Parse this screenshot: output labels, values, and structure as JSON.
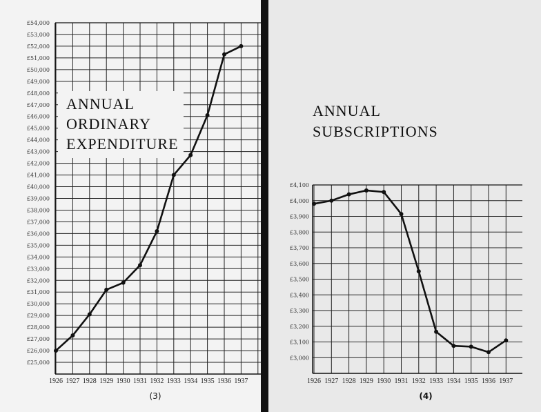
{
  "chart_data": [
    {
      "type": "line",
      "title_lines": [
        "ANNUAL",
        "ORDINARY",
        "EXPENDITURE"
      ],
      "caption": "(3)",
      "categories": [
        "1926",
        "1927",
        "1928",
        "1929",
        "1930",
        "1931",
        "1932",
        "1933",
        "1934",
        "1935",
        "1936",
        "1937"
      ],
      "values": [
        26000,
        27300,
        29100,
        31200,
        31800,
        33300,
        36200,
        41000,
        42700,
        46100,
        51300,
        52000
      ],
      "ylim": [
        24000,
        54000
      ],
      "ytick_start": 25000,
      "ytick_step": 1000,
      "currency": "£",
      "grid": true
    },
    {
      "type": "line",
      "title_lines": [
        "ANNUAL",
        "SUBSCRIPTIONS"
      ],
      "caption": "(4)",
      "categories": [
        "1926",
        "1927",
        "1928",
        "1929",
        "1930",
        "1931",
        "1932",
        "1933",
        "1934",
        "1935",
        "1936",
        "1937"
      ],
      "values": [
        3980,
        4000,
        4040,
        4065,
        4055,
        3915,
        3550,
        3165,
        3075,
        3070,
        3035,
        3110
      ],
      "ylim": [
        2900,
        4100
      ],
      "ytick_start": 3000,
      "ytick_step": 100,
      "currency": "£",
      "grid": true
    }
  ]
}
